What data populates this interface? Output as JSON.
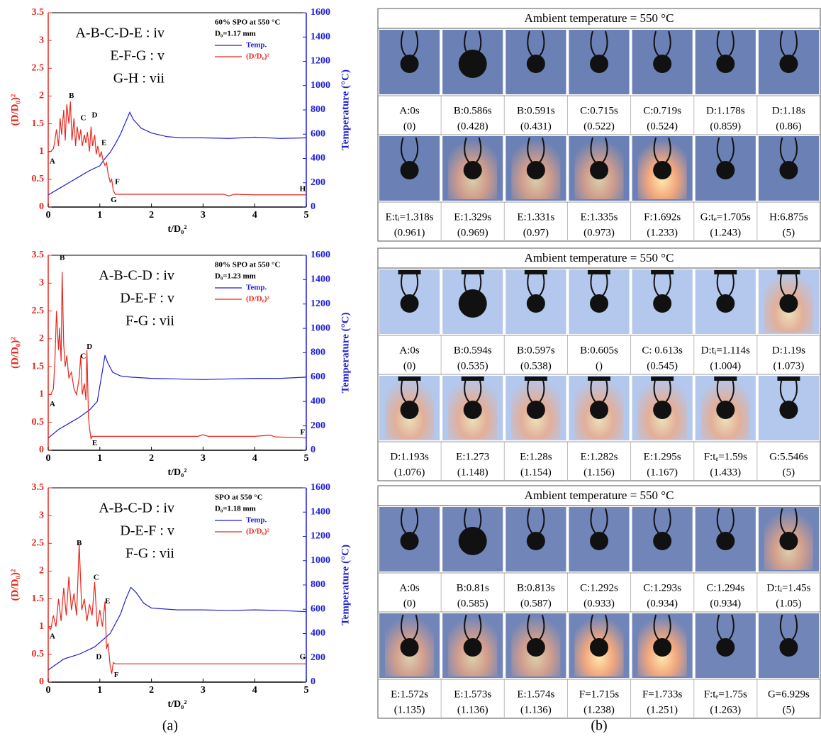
{
  "chart_data": [
    {
      "type": "line",
      "title": "60% SPO at 550 °C",
      "subtitle": "D₀=1.17 mm",
      "phase_labels": [
        "A-B-C-D-E : iv",
        "E-F-G : v",
        "G-H : vii"
      ],
      "annotations": [
        {
          "text": "A",
          "x": 0.08,
          "y": 0.82
        },
        {
          "text": "B",
          "x": 0.45,
          "y": 2.0
        },
        {
          "text": "C",
          "x": 0.68,
          "y": 1.6
        },
        {
          "text": "D",
          "x": 0.9,
          "y": 1.65
        },
        {
          "text": "E",
          "x": 1.08,
          "y": 1.15
        },
        {
          "text": "F",
          "x": 1.34,
          "y": 0.45
        },
        {
          "text": "G",
          "x": 1.27,
          "y": 0.12
        },
        {
          "text": "H",
          "x": 4.93,
          "y": 0.32
        }
      ],
      "xlabel": "t/D₀²",
      "ylabel": "(D/D₀)²",
      "y2label": "Temperature (°C)",
      "xlim": [
        0,
        5
      ],
      "xticks": [
        0,
        1,
        2,
        3,
        4,
        5
      ],
      "ylim": [
        0,
        3.5
      ],
      "yticks": [
        0,
        0.5,
        1,
        1.5,
        2,
        2.5,
        3,
        3.5
      ],
      "y2lim": [
        0,
        1600
      ],
      "y2ticks": [
        0,
        200,
        400,
        600,
        800,
        1000,
        1200,
        1400,
        1600
      ],
      "legend": "upper right",
      "series": [
        {
          "name": "Temp.",
          "color": "#1f1fd1",
          "axis": "y2",
          "x": [
            0,
            0.2,
            0.4,
            0.6,
            0.8,
            1.0,
            1.1,
            1.2,
            1.3,
            1.4,
            1.5,
            1.58,
            1.65,
            1.8,
            2.0,
            2.3,
            2.6,
            3,
            3.5,
            4,
            4.5,
            5
          ],
          "values": [
            100,
            150,
            200,
            250,
            300,
            340,
            400,
            450,
            520,
            600,
            700,
            780,
            720,
            650,
            610,
            580,
            570,
            570,
            565,
            575,
            565,
            570
          ]
        },
        {
          "name": "(D/D₀)²",
          "color": "#e8281e",
          "x": [
            0,
            0.05,
            0.1,
            0.13,
            0.16,
            0.2,
            0.23,
            0.26,
            0.3,
            0.33,
            0.36,
            0.4,
            0.43,
            0.46,
            0.5,
            0.53,
            0.56,
            0.6,
            0.63,
            0.66,
            0.7,
            0.73,
            0.76,
            0.8,
            0.83,
            0.86,
            0.9,
            0.93,
            0.96,
            1.0,
            1.03,
            1.06,
            1.1,
            1.13,
            1.16,
            1.2,
            1.23,
            1.26,
            1.3,
            2,
            3,
            3.4,
            3.5,
            3.6,
            4,
            5
          ],
          "values": [
            1.0,
            1.0,
            1.05,
            1.2,
            1.4,
            1.1,
            1.6,
            1.3,
            1.75,
            1.2,
            1.85,
            1.5,
            1.9,
            1.2,
            1.6,
            1.1,
            1.45,
            1.2,
            1.4,
            1.1,
            1.3,
            1.15,
            1.35,
            1.0,
            1.45,
            1.1,
            1.3,
            0.95,
            1.1,
            0.9,
            1.0,
            0.85,
            0.75,
            0.8,
            0.6,
            0.45,
            0.5,
            0.3,
            0.23,
            0.23,
            0.23,
            0.23,
            0.2,
            0.23,
            0.22,
            0.22
          ]
        }
      ]
    },
    {
      "type": "line",
      "title": "80% SPO at 550 °C",
      "subtitle": "D₀=1.23 mm",
      "phase_labels": [
        "A-B-C-D : iv",
        "D-E-F : v",
        "F-G : vii"
      ],
      "annotations": [
        {
          "text": "A",
          "x": 0.08,
          "y": 0.82
        },
        {
          "text": "B",
          "x": 0.27,
          "y": 3.45
        },
        {
          "text": "C",
          "x": 0.68,
          "y": 1.68
        },
        {
          "text": "D",
          "x": 0.8,
          "y": 1.85
        },
        {
          "text": "E",
          "x": 0.9,
          "y": 0.12
        },
        {
          "text": "F",
          "x": 4.93,
          "y": 0.32
        }
      ],
      "xlabel": "t/D₀²",
      "ylabel": "(D/D₀)²",
      "y2label": "Temperature (°C)",
      "xlim": [
        0,
        5
      ],
      "xticks": [
        0,
        1,
        2,
        3,
        4,
        5
      ],
      "ylim": [
        0,
        3.5
      ],
      "yticks": [
        0,
        0.5,
        1,
        1.5,
        2,
        2.5,
        3,
        3.5
      ],
      "y2lim": [
        0,
        1600
      ],
      "y2ticks": [
        0,
        200,
        400,
        600,
        800,
        1000,
        1200,
        1400,
        1600
      ],
      "legend": "upper right",
      "series": [
        {
          "name": "Temp.",
          "color": "#1f1fd1",
          "axis": "y2",
          "x": [
            0,
            0.2,
            0.4,
            0.6,
            0.8,
            0.95,
            1.05,
            1.1,
            1.15,
            1.25,
            1.4,
            1.6,
            2,
            2.5,
            3,
            3.5,
            4,
            4.5,
            5
          ],
          "values": [
            100,
            170,
            220,
            270,
            330,
            400,
            650,
            780,
            720,
            640,
            610,
            600,
            590,
            585,
            580,
            585,
            590,
            590,
            600
          ]
        },
        {
          "name": "(D/D₀)²",
          "color": "#e8281e",
          "x": [
            0,
            0.05,
            0.1,
            0.13,
            0.16,
            0.2,
            0.22,
            0.25,
            0.27,
            0.3,
            0.33,
            0.36,
            0.4,
            0.45,
            0.5,
            0.55,
            0.6,
            0.63,
            0.66,
            0.7,
            0.73,
            0.75,
            0.78,
            0.8,
            0.83,
            0.85,
            0.9,
            2,
            2.9,
            3,
            3.1,
            4,
            4.3,
            4.4,
            5
          ],
          "values": [
            1.0,
            1.0,
            1.1,
            1.6,
            2.5,
            1.8,
            2.2,
            1.6,
            3.2,
            1.9,
            1.5,
            1.7,
            1.3,
            1.4,
            1.1,
            1.0,
            1.3,
            1.7,
            1.0,
            1.2,
            0.9,
            1.8,
            0.6,
            0.4,
            0.2,
            0.25,
            0.25,
            0.25,
            0.25,
            0.28,
            0.25,
            0.25,
            0.27,
            0.24,
            0.22
          ]
        }
      ]
    },
    {
      "type": "line",
      "title": "SPO at 550 °C",
      "subtitle": "D₀=1.18 mm",
      "phase_labels": [
        "A-B-C-D : iv",
        "D-E-F : v",
        "F-G : vii"
      ],
      "annotations": [
        {
          "text": "A",
          "x": 0.08,
          "y": 0.82
        },
        {
          "text": "B",
          "x": 0.6,
          "y": 2.5
        },
        {
          "text": "C",
          "x": 0.93,
          "y": 1.88
        },
        {
          "text": "D",
          "x": 0.98,
          "y": 0.45
        },
        {
          "text": "E",
          "x": 1.15,
          "y": 1.45
        },
        {
          "text": "F",
          "x": 1.32,
          "y": 0.12
        },
        {
          "text": "G",
          "x": 4.93,
          "y": 0.45
        }
      ],
      "xlabel": "t/D₀²",
      "ylabel": "(D/D₀)²",
      "y2label": "Temperature (°C)",
      "xlim": [
        0,
        5
      ],
      "xticks": [
        0,
        1,
        2,
        3,
        4,
        5
      ],
      "ylim": [
        0,
        3.5
      ],
      "yticks": [
        0,
        0.5,
        1,
        1.5,
        2,
        2.5,
        3,
        3.5
      ],
      "y2lim": [
        0,
        1600
      ],
      "y2ticks": [
        0,
        200,
        400,
        600,
        800,
        1000,
        1200,
        1400,
        1600
      ],
      "legend": "upper right",
      "series": [
        {
          "name": "Temp.",
          "color": "#1f1fd1",
          "axis": "y2",
          "x": [
            0,
            0.3,
            0.6,
            0.9,
            1.2,
            1.4,
            1.5,
            1.6,
            1.7,
            1.85,
            2,
            2.5,
            3,
            3.5,
            4,
            4.5,
            5
          ],
          "values": [
            100,
            190,
            230,
            290,
            400,
            560,
            680,
            780,
            740,
            650,
            610,
            595,
            595,
            590,
            595,
            590,
            580
          ]
        },
        {
          "name": "(D/D₀)²",
          "color": "#e8281e",
          "x": [
            0,
            0.05,
            0.1,
            0.15,
            0.2,
            0.25,
            0.3,
            0.35,
            0.4,
            0.45,
            0.5,
            0.55,
            0.6,
            0.65,
            0.7,
            0.75,
            0.8,
            0.85,
            0.9,
            0.95,
            1.0,
            1.05,
            1.1,
            1.13,
            1.16,
            1.2,
            1.23,
            1.26,
            1.3,
            2,
            3,
            4,
            5
          ],
          "values": [
            1.0,
            0.95,
            1.2,
            1.0,
            1.5,
            1.1,
            1.7,
            1.2,
            1.9,
            1.3,
            1.6,
            1.2,
            2.5,
            1.3,
            1.5,
            1.1,
            1.4,
            1.2,
            1.8,
            1.0,
            1.3,
            1.0,
            1.45,
            0.6,
            0.7,
            0.3,
            0.15,
            0.35,
            0.33,
            0.33,
            0.33,
            0.33,
            0.33
          ]
        }
      ]
    }
  ],
  "panel_b": {
    "grids": [
      {
        "header": "Ambient temperature = 550 °C",
        "rows": [
          {
            "times": [
              "A:0s",
              "B:0.586s",
              "B:0.591s",
              "C:0.715s",
              "C:0.719s",
              "D:1.178s",
              "D:1.18s"
            ],
            "ratios": [
              "(0)",
              "(0.428)",
              "(0.431)",
              "(0.522)",
              "(0.524)",
              "(0.859)",
              "(0.86)"
            ]
          },
          {
            "times": [
              "E:tᵢ=1.318s",
              "E:1.329s",
              "E:1.331s",
              "E:1.335s",
              "F:1.692s",
              "G:tₑ=1.705s",
              "H:6.875s"
            ],
            "ratios": [
              "(0.961)",
              "(0.969)",
              "(0.97)",
              "(0.973)",
              "(1.233)",
              "(1.243)",
              "(5)"
            ]
          }
        ]
      },
      {
        "header": "Ambient temperature = 550 °C",
        "rows": [
          {
            "times": [
              "A:0s",
              "B:0.594s",
              "B:0.597s",
              "B:0.605s",
              "C: 0.613s",
              "D:tᵢ=1.114s",
              "D:1.19s"
            ],
            "ratios": [
              "(0)",
              "(0.535)",
              "(0.538)",
              "()",
              "(0.545)",
              "(1.004)",
              "(1.073)"
            ]
          },
          {
            "times": [
              "D:1.193s",
              "E:1.273",
              "E:1.28s",
              "E:1.282s",
              "E:1.295s",
              "F:tₑ=1.59s",
              "G:5.546s"
            ],
            "ratios": [
              "(1.076)",
              "(1.148)",
              "(1.154)",
              "(1.156)",
              "(1.167)",
              "(1.433)",
              "(5)"
            ]
          }
        ]
      },
      {
        "header": "Ambient temperature = 550 °C",
        "rows": [
          {
            "times": [
              "A:0s",
              "B:0.81s",
              "B:0.813s",
              "C:1.292s",
              "C:1.293s",
              "C:1.294s",
              "D:tᵢ=1.45s"
            ],
            "ratios": [
              "(0)",
              "(0.585)",
              "(0.587)",
              "(0.933)",
              "(0.934)",
              "(0.934)",
              "(1.05)"
            ]
          },
          {
            "times": [
              "E:1.572s",
              "E:1.573s",
              "E:1.574s",
              "F=1.715s",
              "F=1.733s",
              "F:tₑ=1.75s",
              "G=6.929s"
            ],
            "ratios": [
              "(1.135)",
              "(1.136)",
              "(1.136)",
              "(1.238)",
              "(1.251)",
              "(1.263)",
              "(5)"
            ]
          }
        ]
      }
    ]
  },
  "panel_labels": [
    "(a)",
    "(b)"
  ]
}
